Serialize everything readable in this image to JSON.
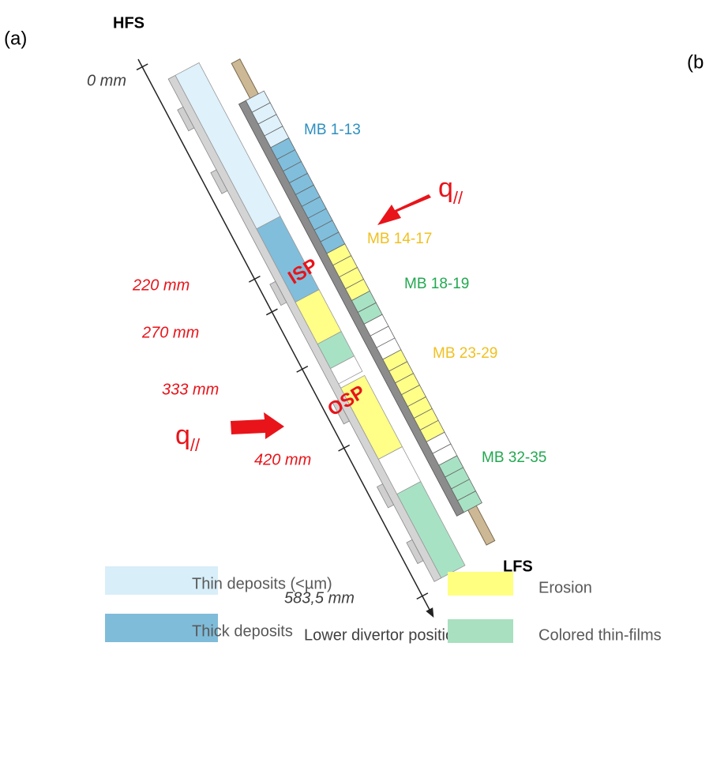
{
  "panels": {
    "a": "(a)",
    "b": "(b"
  },
  "hfs": "HFS",
  "lfs": "LFS",
  "positions": [
    "0 mm",
    "220 mm",
    "270 mm",
    "333 mm",
    "420 mm",
    "583,5 mm"
  ],
  "axis_label": "Lower divertor position ‘s’",
  "tiles": [
    "MB 1-13",
    "MB 14-17",
    "MB 18-19",
    "MB 23-29",
    "MB 32-35"
  ],
  "strike_points": [
    "ISP",
    "OSP"
  ],
  "heat_flux": [
    {
      "base": "q",
      "sub": "//"
    },
    {
      "base": "q",
      "sub": "//"
    }
  ],
  "legend": [
    "Thin deposits (<µm)",
    "Thick deposits",
    "Erosion",
    "Colored thin-films"
  ]
}
